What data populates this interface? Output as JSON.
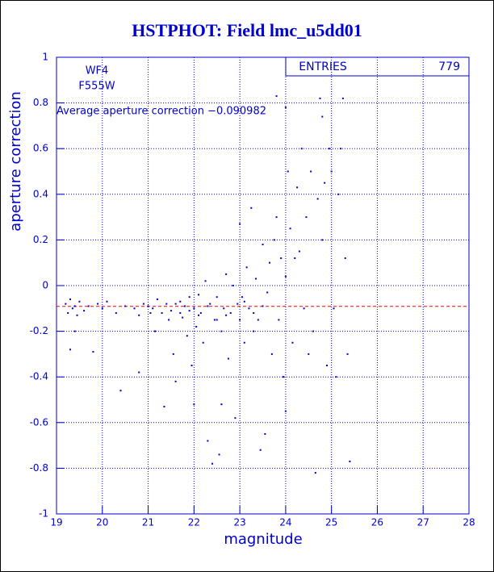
{
  "chart_data": {
    "type": "scatter",
    "title": "HSTPHOT: Field lmc_u5dd01",
    "x_label": "magnitude",
    "y_label": "aperture correction",
    "annotations": [
      "WF4",
      "F555W",
      "Average aperture correction −0.090982"
    ],
    "stats": {
      "label": "ENTRIES",
      "value": 779
    },
    "hline": {
      "value": -0.090982,
      "color": "#ff0000"
    },
    "xlim": [
      19,
      28
    ],
    "ylim": [
      -1,
      1
    ],
    "xticks": [
      19,
      20,
      21,
      22,
      23,
      24,
      25,
      26,
      27,
      28
    ],
    "yticks": [
      -1,
      -0.8,
      -0.6,
      -0.4,
      -0.2,
      0,
      0.2,
      0.4,
      0.6,
      0.8,
      1
    ],
    "grid": true,
    "color": "#0000cc",
    "x": [
      19.2,
      19.25,
      19.3,
      19.35,
      19.4,
      19.45,
      19.5,
      19.3,
      19.4,
      19.6,
      19.7,
      19.8,
      19.9,
      20.0,
      20.1,
      20.3,
      20.4,
      20.5,
      20.7,
      20.8,
      20.9,
      20.8,
      21.0,
      21.05,
      21.1,
      21.15,
      21.2,
      21.3,
      21.35,
      21.4,
      21.45,
      21.5,
      21.55,
      21.6,
      21.7,
      21.75,
      21.8,
      21.85,
      21.9,
      21.95,
      22.0,
      22.0,
      22.05,
      22.1,
      22.15,
      22.2,
      22.25,
      22.3,
      22.35,
      22.4,
      22.45,
      22.5,
      22.55,
      22.6,
      22.6,
      22.65,
      22.7,
      22.75,
      22.8,
      22.85,
      22.9,
      22.95,
      23.0,
      23.0,
      23.05,
      23.1,
      23.15,
      23.2,
      23.25,
      23.3,
      23.35,
      23.4,
      23.45,
      23.5,
      23.55,
      23.6,
      23.65,
      23.7,
      23.75,
      23.8,
      23.85,
      23.9,
      23.95,
      24.0,
      24.0,
      24.05,
      24.1,
      24.15,
      24.2,
      24.25,
      24.3,
      24.35,
      24.4,
      24.45,
      24.5,
      24.55,
      24.6,
      24.65,
      24.7,
      24.75,
      24.8,
      24.85,
      24.9,
      24.95,
      25.0,
      25.05,
      25.1,
      25.15,
      25.2,
      25.25,
      25.3,
      25.35,
      25.4,
      24.8,
      23.8,
      24.0,
      22.1,
      22.3,
      21.9,
      22.7,
      23.1,
      21.6,
      21.7,
      23.3,
      22.5,
      23.5
    ],
    "y": [
      -0.08,
      -0.12,
      -0.06,
      -0.1,
      -0.09,
      -0.13,
      -0.07,
      -0.28,
      -0.2,
      -0.11,
      -0.09,
      -0.29,
      -0.08,
      -0.1,
      -0.07,
      -0.12,
      -0.46,
      -0.09,
      -0.1,
      -0.13,
      -0.08,
      -0.38,
      -0.09,
      -0.12,
      -0.1,
      -0.2,
      -0.06,
      -0.12,
      -0.53,
      -0.08,
      -0.15,
      -0.11,
      -0.3,
      -0.42,
      -0.07,
      -0.14,
      -0.09,
      -0.22,
      -0.05,
      -0.35,
      -0.52,
      -0.1,
      -0.18,
      -0.04,
      -0.12,
      -0.25,
      0.02,
      -0.68,
      -0.08,
      -0.78,
      -0.15,
      -0.05,
      -0.74,
      -0.52,
      -0.2,
      -0.1,
      0.05,
      -0.32,
      -0.12,
      0.0,
      -0.58,
      -0.08,
      0.27,
      -0.15,
      -0.05,
      -0.25,
      0.08,
      -0.1,
      0.34,
      -0.2,
      0.03,
      -0.15,
      -0.72,
      0.18,
      -0.65,
      -0.03,
      0.1,
      -0.3,
      0.2,
      0.3,
      -0.15,
      0.12,
      -0.4,
      0.04,
      -0.55,
      0.5,
      0.25,
      -0.25,
      0.12,
      0.43,
      0.15,
      0.6,
      -0.1,
      0.3,
      -0.3,
      0.5,
      -0.2,
      -0.82,
      0.38,
      0.82,
      0.2,
      0.45,
      -0.35,
      0.6,
      0.5,
      -0.1,
      -0.4,
      0.4,
      0.6,
      0.82,
      0.12,
      -0.3,
      -0.77,
      0.74,
      0.83,
      0.78,
      -0.13,
      -0.09,
      -0.11,
      -0.13,
      -0.07,
      -0.08,
      -0.12,
      -0.12,
      -0.15,
      -0.09
    ]
  }
}
